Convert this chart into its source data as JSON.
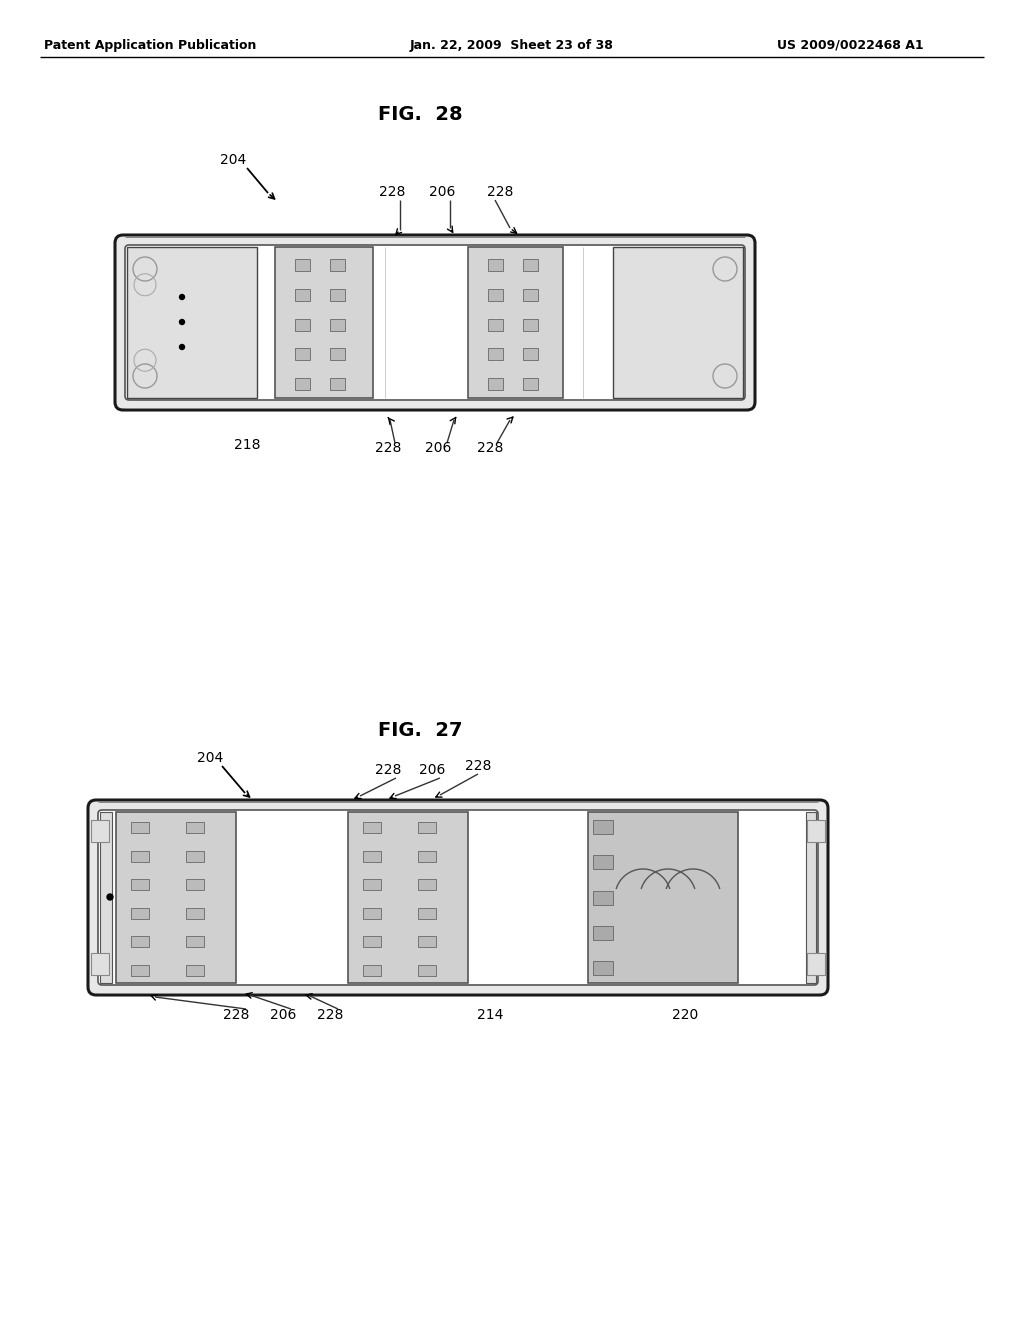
{
  "bg_color": "#ffffff",
  "text_color": "#000000",
  "header_left": "Patent Application Publication",
  "header_mid": "Jan. 22, 2009  Sheet 23 of 38",
  "header_right": "US 2009/0022468 A1",
  "fig28_title": "FIG.  28",
  "fig27_title": "FIG.  27"
}
